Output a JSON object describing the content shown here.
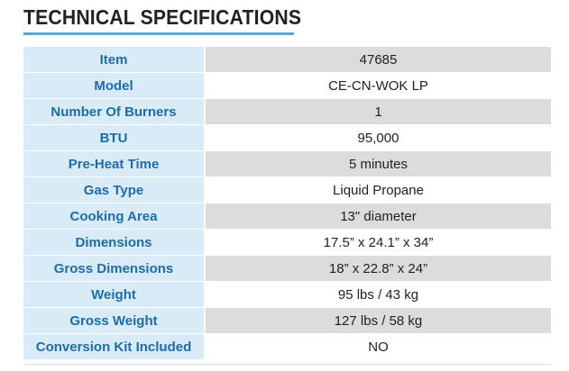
{
  "title": "TECHNICAL SPECIFICATIONS",
  "colors": {
    "label_bg": "#d9ebf6",
    "label_text": "#1f6ca8",
    "value_odd_bg": "#dcdcdc",
    "value_even_bg": "#ffffff",
    "title_rule": "#5aa6d6"
  },
  "specs": [
    {
      "label": "Item",
      "value": "47685"
    },
    {
      "label": "Model",
      "value": "CE-CN-WOK LP"
    },
    {
      "label": "Number Of Burners",
      "value": "1"
    },
    {
      "label": "BTU",
      "value": "95,000"
    },
    {
      "label": "Pre-Heat Time",
      "value": "5 minutes"
    },
    {
      "label": "Gas Type",
      "value": "Liquid Propane"
    },
    {
      "label": "Cooking Area",
      "value": "13\" diameter"
    },
    {
      "label": "Dimensions",
      "value": "17.5” x 24.1” x 34”"
    },
    {
      "label": "Gross Dimensions",
      "value": "18” x 22.8” x 24”"
    },
    {
      "label": "Weight",
      "value": "95 lbs / 43 kg"
    },
    {
      "label": "Gross Weight",
      "value": "127 lbs / 58 kg"
    },
    {
      "label": "Conversion Kit Included",
      "value": "NO"
    }
  ]
}
